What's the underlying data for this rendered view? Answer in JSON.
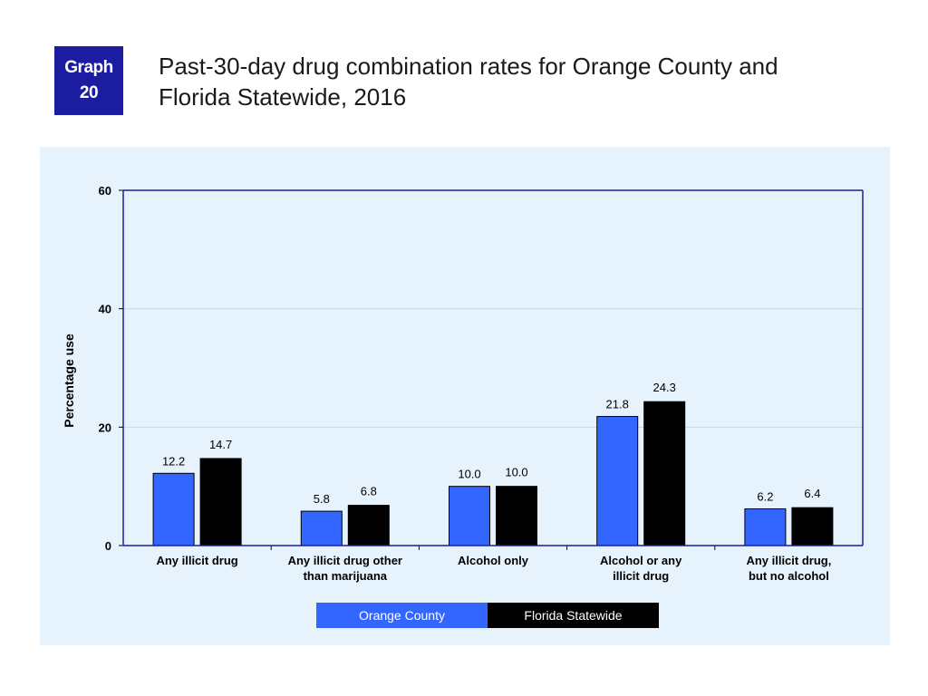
{
  "badge": {
    "line1": "Graph",
    "line2": "20"
  },
  "title": {
    "line1": "Past-30-day drug combination rates for Orange County and",
    "line2": "Florida Statewide, 2016"
  },
  "chart_data": {
    "type": "bar",
    "title": "Past-30-day drug combination rates for Orange County and Florida Statewide, 2016",
    "xlabel": "",
    "ylabel": "Percentage use",
    "ylim": [
      0,
      60
    ],
    "yticks": [
      0,
      20,
      40,
      60
    ],
    "grid": true,
    "legend_position": "bottom",
    "categories": [
      [
        "Any illicit drug"
      ],
      [
        "Any illicit drug other",
        "than marijuana"
      ],
      [
        "Alcohol only"
      ],
      [
        "Alcohol or any",
        "illicit drug"
      ],
      [
        "Any illicit drug,",
        "but no alcohol"
      ]
    ],
    "series": [
      {
        "name": "Orange County",
        "color": "#3366ff",
        "values": [
          12.2,
          5.8,
          10.0,
          21.8,
          6.2
        ],
        "labels": [
          "12.2",
          "5.8",
          "10.0",
          "21.8",
          "6.2"
        ]
      },
      {
        "name": "Florida Statewide",
        "color": "#000000",
        "values": [
          14.7,
          6.8,
          10.0,
          24.3,
          6.4
        ],
        "labels": [
          "14.7",
          "6.8",
          "10.0",
          "24.3",
          "6.4"
        ]
      }
    ]
  }
}
